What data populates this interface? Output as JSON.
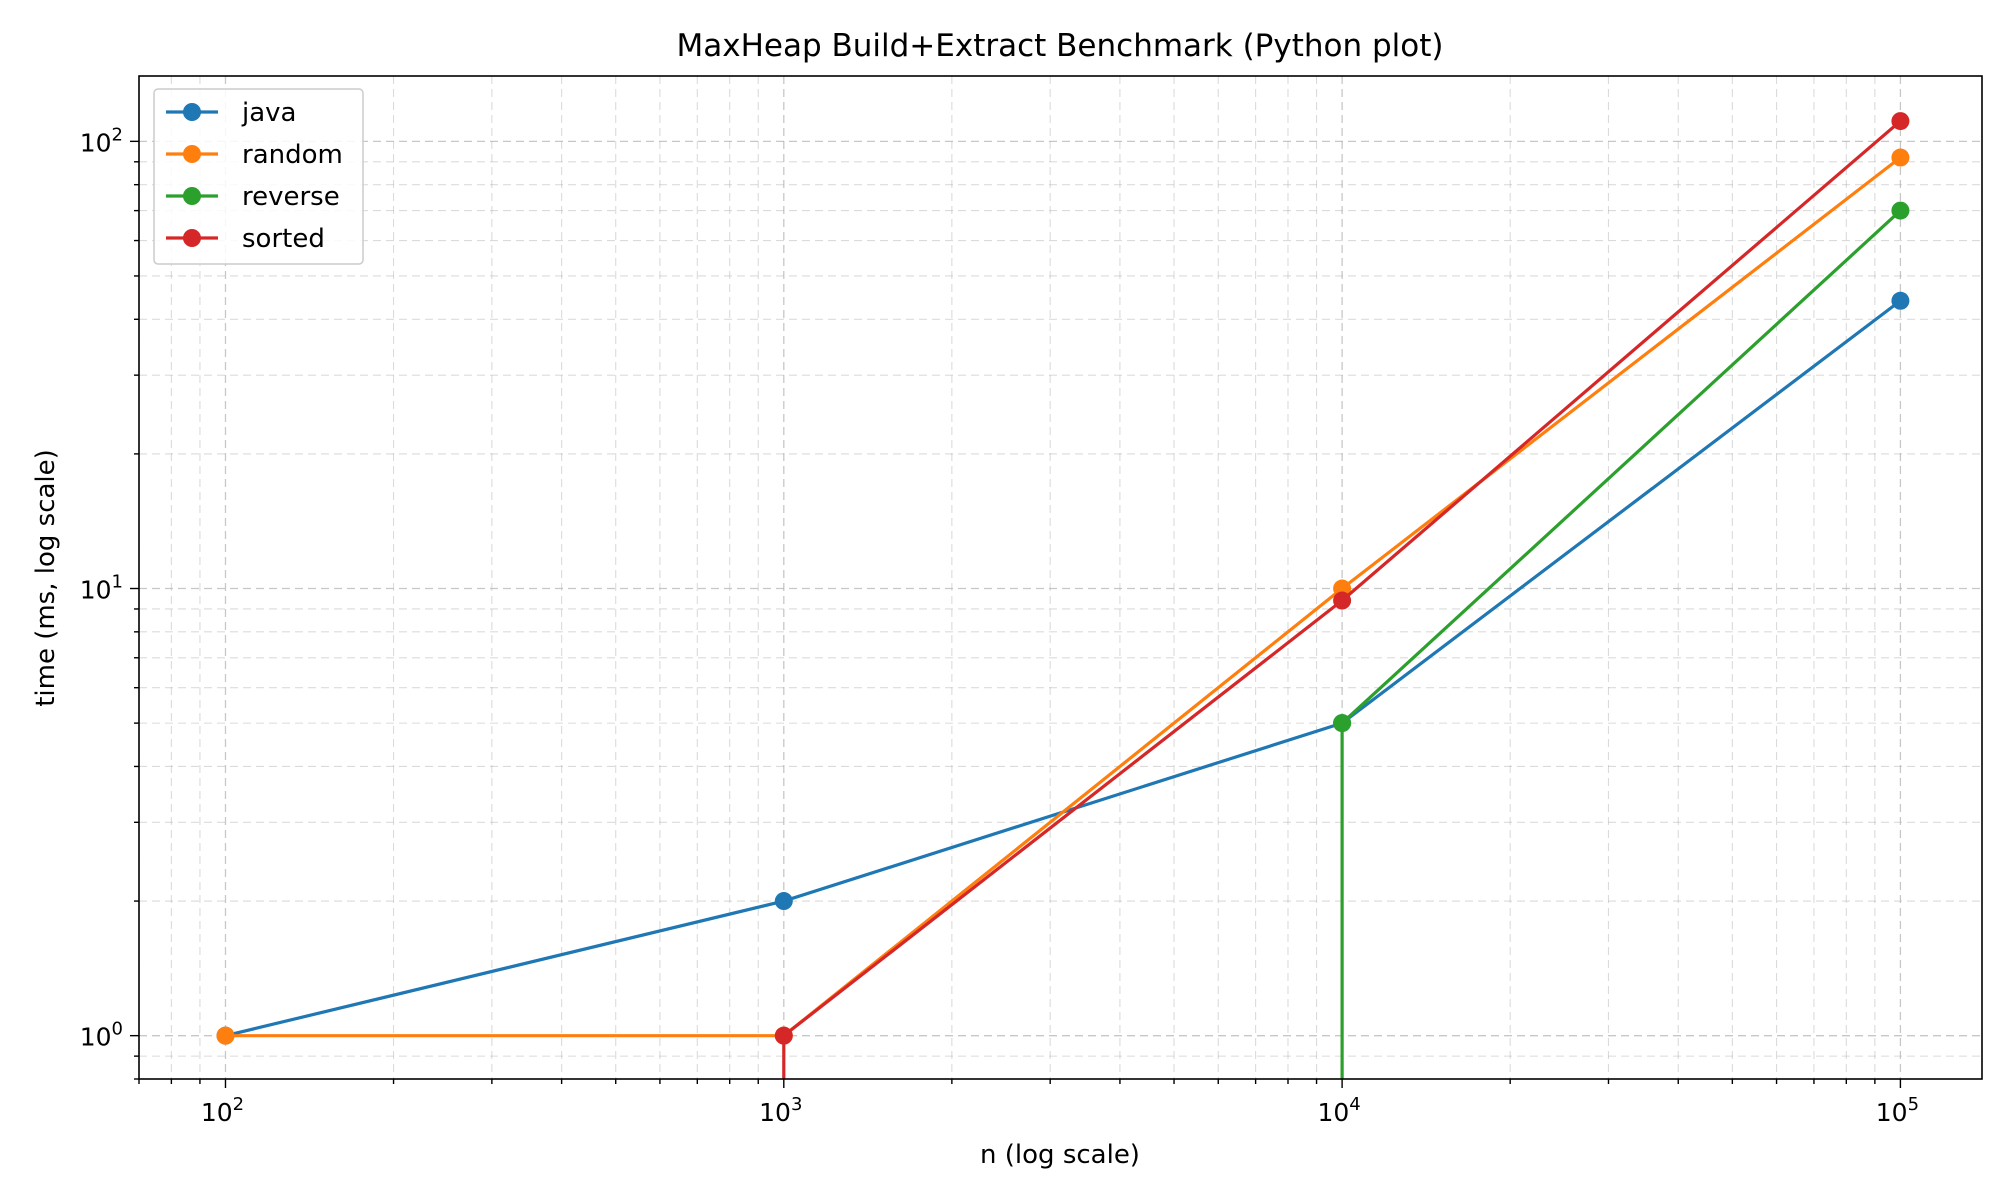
{
  "chart_data": {
    "type": "line",
    "title": "MaxHeap Build+Extract Benchmark (Python plot)",
    "xlabel": "n (log scale)",
    "ylabel": "time (ms, log scale)",
    "xscale": "log",
    "yscale": "log",
    "xlim": [
      70,
      140000
    ],
    "ylim": [
      0.8,
      140
    ],
    "x": [
      100,
      1000,
      10000,
      100000
    ],
    "xticks": [
      {
        "base": "10",
        "exp": "2",
        "value": 100
      },
      {
        "base": "10",
        "exp": "3",
        "value": 1000
      },
      {
        "base": "10",
        "exp": "4",
        "value": 10000
      },
      {
        "base": "10",
        "exp": "5",
        "value": 100000
      }
    ],
    "yticks": [
      {
        "base": "10",
        "exp": "0",
        "value": 1
      },
      {
        "base": "10",
        "exp": "1",
        "value": 10
      },
      {
        "base": "10",
        "exp": "2",
        "value": 100
      }
    ],
    "grid": true,
    "legend_position": "top-left",
    "series": [
      {
        "name": "java",
        "color": "#1f77b4",
        "values": [
          1,
          2,
          5,
          44
        ]
      },
      {
        "name": "random",
        "color": "#ff7f0e",
        "values": [
          1,
          1,
          10,
          92
        ]
      },
      {
        "name": "reverse",
        "color": "#2ca02c",
        "values": [
          null,
          null,
          5,
          70
        ]
      },
      {
        "name": "sorted",
        "color": "#d62728",
        "values": [
          null,
          1,
          9.4,
          111
        ]
      }
    ]
  }
}
